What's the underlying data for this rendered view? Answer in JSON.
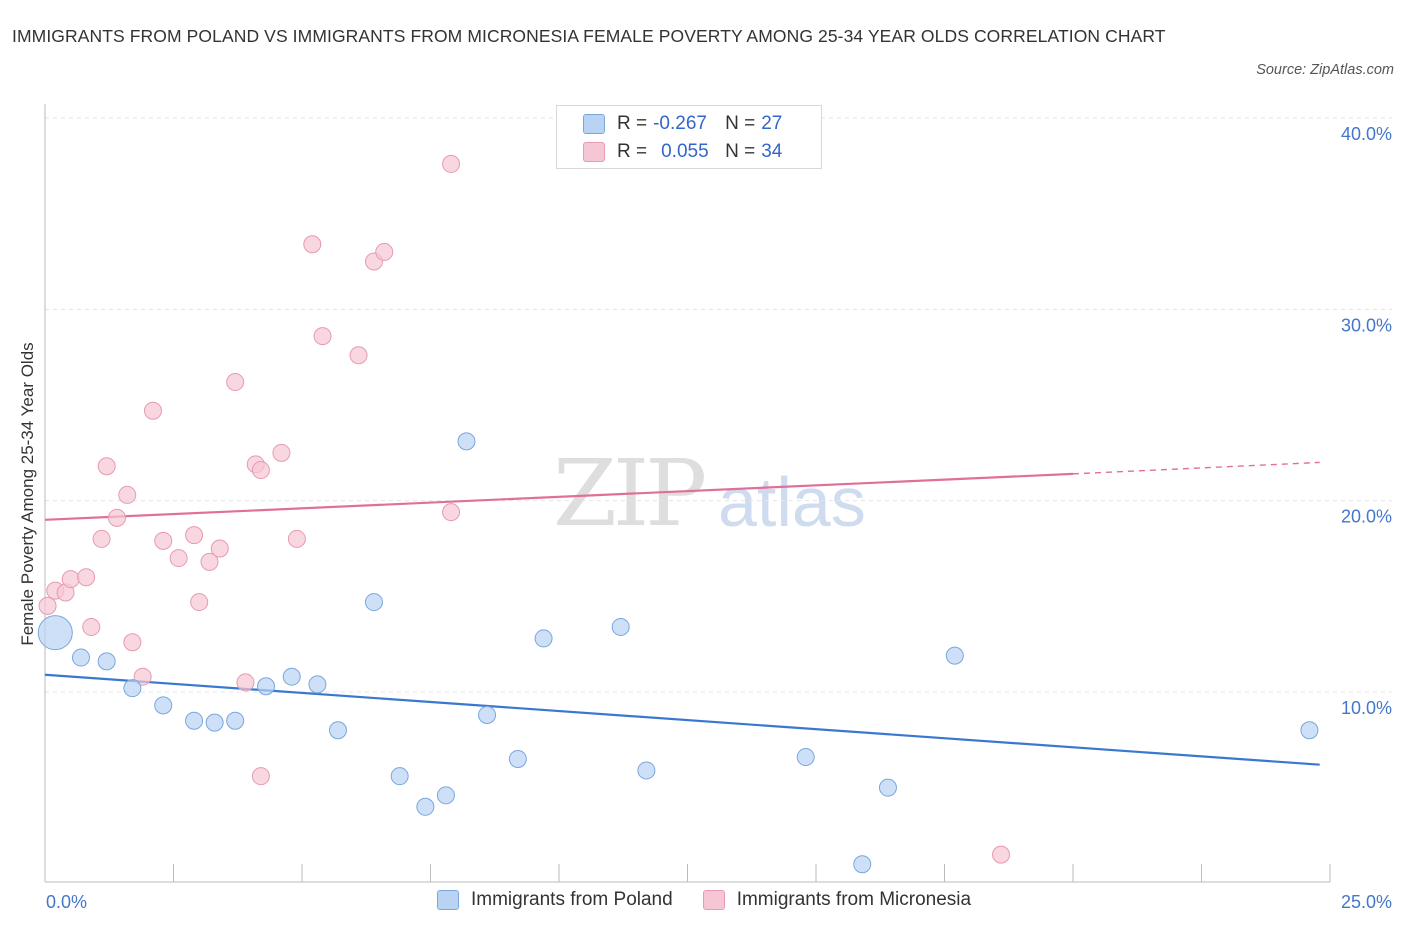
{
  "title": "IMMIGRANTS FROM POLAND VS IMMIGRANTS FROM MICRONESIA FEMALE POVERTY AMONG 25-34 YEAR OLDS CORRELATION CHART",
  "source": "Source: ZipAtlas.com",
  "watermark": {
    "zip": "ZIP",
    "atlas": "atlas"
  },
  "legend": {
    "rows": [
      {
        "r_label": "R =",
        "r_value": "-0.267",
        "n_label": "N =",
        "n_value": "27"
      },
      {
        "r_label": "R =",
        "r_value": "0.055",
        "n_label": "N =",
        "n_value": "34"
      }
    ]
  },
  "colors": {
    "poland_fill": "#b8d3f4",
    "poland_stroke": "#7aa6dd",
    "poland_line": "#3a78d0",
    "micronesia_fill": "#f7c6d4",
    "micronesia_stroke": "#e79ab1",
    "micronesia_line": "#e0709a",
    "grid": "#e4e4e4",
    "tick_text": "#4477cc"
  },
  "chart_data": {
    "type": "scatter",
    "title": "IMMIGRANTS FROM POLAND VS IMMIGRANTS FROM MICRONESIA FEMALE POVERTY AMONG 25-34 YEAR OLDS CORRELATION CHART",
    "xlabel": "",
    "ylabel": "Female Poverty Among 25-34 Year Olds",
    "xlim": [
      0,
      25
    ],
    "ylim": [
      0,
      40
    ],
    "x_tick_labels": [
      "0.0%",
      "25.0%"
    ],
    "y_ticks": [
      {
        "value": 10,
        "label": "10.0%"
      },
      {
        "value": 20,
        "label": "20.0%"
      },
      {
        "value": 30,
        "label": "30.0%"
      },
      {
        "value": 40,
        "label": "40.0%"
      }
    ],
    "grid": true,
    "legend_position": "bottom",
    "series": [
      {
        "name": "Immigrants from Poland",
        "points": [
          {
            "x": 0.2,
            "y": 13.1,
            "size": "large"
          },
          {
            "x": 0.7,
            "y": 11.8
          },
          {
            "x": 1.2,
            "y": 11.6
          },
          {
            "x": 1.7,
            "y": 10.2
          },
          {
            "x": 2.3,
            "y": 9.3
          },
          {
            "x": 2.9,
            "y": 8.5
          },
          {
            "x": 3.3,
            "y": 8.4
          },
          {
            "x": 3.7,
            "y": 8.5
          },
          {
            "x": 4.3,
            "y": 10.3
          },
          {
            "x": 4.8,
            "y": 10.8
          },
          {
            "x": 5.3,
            "y": 10.4
          },
          {
            "x": 5.7,
            "y": 8.0
          },
          {
            "x": 6.4,
            "y": 14.7
          },
          {
            "x": 6.9,
            "y": 5.6
          },
          {
            "x": 7.4,
            "y": 4.0
          },
          {
            "x": 7.8,
            "y": 4.6
          },
          {
            "x": 8.2,
            "y": 23.1
          },
          {
            "x": 8.6,
            "y": 8.8
          },
          {
            "x": 9.2,
            "y": 6.5
          },
          {
            "x": 9.7,
            "y": 12.8
          },
          {
            "x": 11.2,
            "y": 13.4
          },
          {
            "x": 11.7,
            "y": 5.9
          },
          {
            "x": 14.8,
            "y": 6.6
          },
          {
            "x": 15.9,
            "y": 1.0
          },
          {
            "x": 16.4,
            "y": 5.0
          },
          {
            "x": 17.7,
            "y": 11.9
          },
          {
            "x": 24.6,
            "y": 8.0
          }
        ],
        "trend": {
          "x1": 0,
          "y1": 10.9,
          "x2": 24.8,
          "y2": 6.2,
          "dashed_to": null
        }
      },
      {
        "name": "Immigrants from Micronesia",
        "points": [
          {
            "x": 0.05,
            "y": 14.5
          },
          {
            "x": 0.2,
            "y": 15.3
          },
          {
            "x": 0.4,
            "y": 15.2
          },
          {
            "x": 0.5,
            "y": 15.9
          },
          {
            "x": 0.8,
            "y": 16.0
          },
          {
            "x": 0.9,
            "y": 13.4
          },
          {
            "x": 1.1,
            "y": 18.0
          },
          {
            "x": 1.2,
            "y": 21.8
          },
          {
            "x": 1.4,
            "y": 19.1
          },
          {
            "x": 1.6,
            "y": 20.3
          },
          {
            "x": 1.7,
            "y": 12.6
          },
          {
            "x": 1.9,
            "y": 10.8
          },
          {
            "x": 2.1,
            "y": 24.7
          },
          {
            "x": 2.3,
            "y": 17.9
          },
          {
            "x": 2.6,
            "y": 17.0
          },
          {
            "x": 2.9,
            "y": 18.2
          },
          {
            "x": 3.0,
            "y": 14.7
          },
          {
            "x": 3.2,
            "y": 16.8
          },
          {
            "x": 3.4,
            "y": 17.5
          },
          {
            "x": 3.7,
            "y": 26.2
          },
          {
            "x": 3.9,
            "y": 10.5
          },
          {
            "x": 4.1,
            "y": 21.9
          },
          {
            "x": 4.2,
            "y": 21.6
          },
          {
            "x": 4.2,
            "y": 5.6
          },
          {
            "x": 4.6,
            "y": 22.5
          },
          {
            "x": 4.9,
            "y": 18.0
          },
          {
            "x": 5.2,
            "y": 33.4
          },
          {
            "x": 5.4,
            "y": 28.6
          },
          {
            "x": 6.1,
            "y": 27.6
          },
          {
            "x": 6.4,
            "y": 32.5
          },
          {
            "x": 6.6,
            "y": 33.0
          },
          {
            "x": 7.9,
            "y": 37.6
          },
          {
            "x": 7.9,
            "y": 19.4
          },
          {
            "x": 18.6,
            "y": 1.5
          }
        ],
        "trend": {
          "x1": 0,
          "y1": 19.0,
          "x2": 20.0,
          "y2": 21.4,
          "dashed_to": {
            "x": 24.8,
            "y": 22.0
          }
        }
      }
    ]
  }
}
